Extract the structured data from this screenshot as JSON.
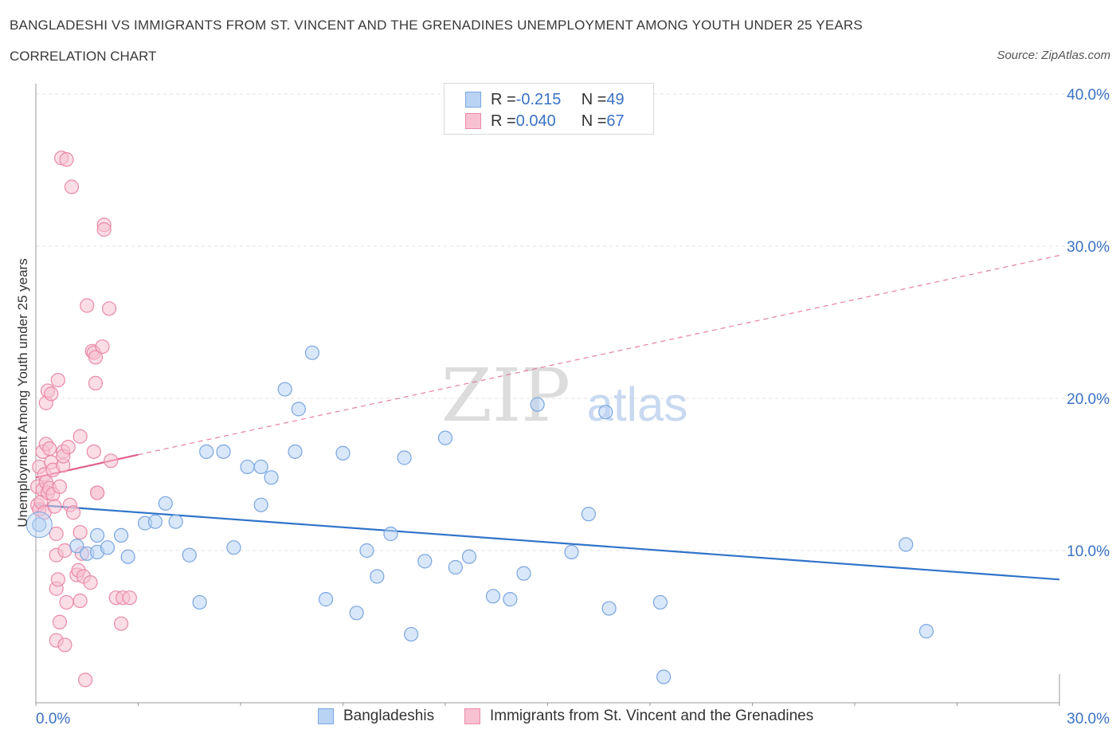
{
  "header": {
    "title": "BANGLADESHI VS IMMIGRANTS FROM ST. VINCENT AND THE GRENADINES UNEMPLOYMENT AMONG YOUTH UNDER 25 YEARS",
    "subtitle": "CORRELATION CHART",
    "source": "Source: ZipAtlas.com"
  },
  "legend": {
    "rows": [
      {
        "r_label": "R = ",
        "r_value": "-0.215",
        "n_label": "N = ",
        "n_value": "49"
      },
      {
        "r_label": "R = ",
        "r_value": "0.040",
        "n_label": "N = ",
        "n_value": "67"
      }
    ]
  },
  "colors": {
    "blue_fill": "#b9d3f5",
    "blue_stroke": "#7aa6e0",
    "blue_line": "#2f73c9",
    "pink_fill": "#f8c1d2",
    "pink_stroke": "#e98aa9",
    "pink_line": "#e0608c",
    "axis_text": "#3a72c4",
    "grid": "#e3e3e3"
  },
  "chart_data": {
    "type": "scatter",
    "title": "BANGLADESHI VS IMMIGRANTS FROM ST. VINCENT AND THE GRENADINES UNEMPLOYMENT AMONG YOUTH UNDER 25 YEARS",
    "xlabel": "",
    "ylabel": "Unemployment Among Youth under 25 years",
    "xlim": [
      0,
      30
    ],
    "ylim": [
      0,
      40
    ],
    "x_tick_labels": [
      "0.0%",
      "30.0%"
    ],
    "y_tick_labels": [
      "10.0%",
      "20.0%",
      "30.0%",
      "40.0%"
    ],
    "y_ticks": [
      10,
      20,
      30,
      40
    ],
    "grid": true,
    "watermark": {
      "zip": "ZIP",
      "atlas": "atlas"
    },
    "series": [
      {
        "name": "Bangladeshis",
        "color": "blue",
        "trend": {
          "x": [
            0,
            30
          ],
          "y": [
            13.0,
            8.1
          ],
          "style": "solid"
        },
        "points": [
          [
            0.1,
            11.7
          ],
          [
            1.2,
            10.3
          ],
          [
            1.5,
            9.8
          ],
          [
            1.8,
            9.9
          ],
          [
            1.8,
            11.0
          ],
          [
            2.1,
            10.2
          ],
          [
            2.5,
            11.0
          ],
          [
            2.7,
            9.6
          ],
          [
            3.2,
            11.8
          ],
          [
            3.5,
            11.9
          ],
          [
            3.8,
            13.1
          ],
          [
            4.1,
            11.9
          ],
          [
            4.5,
            9.7
          ],
          [
            4.8,
            6.6
          ],
          [
            5.0,
            16.5
          ],
          [
            5.5,
            16.5
          ],
          [
            5.8,
            10.2
          ],
          [
            6.2,
            15.5
          ],
          [
            6.6,
            15.5
          ],
          [
            6.6,
            13.0
          ],
          [
            6.9,
            14.8
          ],
          [
            7.3,
            20.6
          ],
          [
            7.6,
            16.5
          ],
          [
            7.7,
            19.3
          ],
          [
            8.1,
            23.0
          ],
          [
            8.5,
            6.8
          ],
          [
            9.0,
            16.4
          ],
          [
            9.4,
            5.9
          ],
          [
            9.7,
            10.0
          ],
          [
            10.0,
            8.3
          ],
          [
            10.4,
            11.1
          ],
          [
            10.8,
            16.1
          ],
          [
            11.0,
            4.5
          ],
          [
            11.4,
            9.3
          ],
          [
            12.0,
            17.4
          ],
          [
            12.3,
            8.9
          ],
          [
            12.7,
            9.6
          ],
          [
            13.4,
            7.0
          ],
          [
            13.9,
            6.8
          ],
          [
            14.3,
            8.5
          ],
          [
            14.7,
            19.6
          ],
          [
            15.7,
            9.9
          ],
          [
            16.2,
            12.4
          ],
          [
            16.7,
            19.1
          ],
          [
            16.8,
            6.2
          ],
          [
            18.3,
            6.6
          ],
          [
            18.4,
            1.7
          ],
          [
            25.5,
            10.4
          ],
          [
            26.1,
            4.7
          ]
        ]
      },
      {
        "name": "Immigrants from St. Vincent and the Grenadines",
        "color": "pink",
        "trend": {
          "x": [
            0,
            3.0
          ],
          "y": [
            14.8,
            16.3
          ],
          "style": "solid",
          "ext_x": [
            3.0,
            30
          ],
          "ext_y": [
            16.3,
            29.4
          ]
        },
        "points": [
          [
            0.05,
            13.0
          ],
          [
            0.05,
            14.2
          ],
          [
            0.1,
            15.5
          ],
          [
            0.1,
            12.7
          ],
          [
            0.15,
            13.2
          ],
          [
            0.2,
            14.0
          ],
          [
            0.2,
            16.5
          ],
          [
            0.25,
            15.0
          ],
          [
            0.25,
            12.5
          ],
          [
            0.3,
            17.0
          ],
          [
            0.3,
            14.5
          ],
          [
            0.3,
            19.7
          ],
          [
            0.35,
            13.8
          ],
          [
            0.35,
            20.5
          ],
          [
            0.4,
            16.7
          ],
          [
            0.4,
            14.1
          ],
          [
            0.45,
            20.3
          ],
          [
            0.45,
            15.8
          ],
          [
            0.5,
            15.3
          ],
          [
            0.5,
            13.7
          ],
          [
            0.55,
            12.9
          ],
          [
            0.6,
            11.1
          ],
          [
            0.6,
            9.7
          ],
          [
            0.6,
            7.5
          ],
          [
            0.6,
            4.1
          ],
          [
            0.65,
            21.2
          ],
          [
            0.65,
            8.1
          ],
          [
            0.7,
            14.2
          ],
          [
            0.7,
            5.3
          ],
          [
            0.75,
            35.8
          ],
          [
            0.8,
            16.5
          ],
          [
            0.8,
            15.6
          ],
          [
            0.8,
            16.2
          ],
          [
            0.85,
            3.8
          ],
          [
            0.85,
            10.0
          ],
          [
            0.9,
            35.7
          ],
          [
            0.9,
            6.6
          ],
          [
            0.95,
            16.8
          ],
          [
            1.0,
            13.0
          ],
          [
            1.05,
            33.9
          ],
          [
            1.1,
            12.5
          ],
          [
            1.2,
            8.4
          ],
          [
            1.25,
            8.7
          ],
          [
            1.3,
            17.5
          ],
          [
            1.3,
            11.2
          ],
          [
            1.3,
            6.7
          ],
          [
            1.35,
            9.8
          ],
          [
            1.4,
            8.3
          ],
          [
            1.45,
            1.5
          ],
          [
            1.5,
            26.1
          ],
          [
            1.6,
            7.9
          ],
          [
            1.65,
            23.1
          ],
          [
            1.7,
            23.0
          ],
          [
            1.7,
            16.5
          ],
          [
            1.75,
            22.7
          ],
          [
            1.75,
            21.0
          ],
          [
            1.8,
            13.8
          ],
          [
            1.8,
            13.8
          ],
          [
            1.95,
            23.4
          ],
          [
            2.0,
            31.4
          ],
          [
            2.0,
            31.1
          ],
          [
            2.15,
            25.9
          ],
          [
            2.2,
            15.9
          ],
          [
            2.35,
            6.9
          ],
          [
            2.5,
            5.2
          ],
          [
            2.55,
            6.9
          ],
          [
            2.75,
            6.9
          ]
        ]
      }
    ]
  },
  "bottom_legend": [
    {
      "label": "Bangladeshis"
    },
    {
      "label": "Immigrants from St. Vincent and the Grenadines"
    }
  ]
}
